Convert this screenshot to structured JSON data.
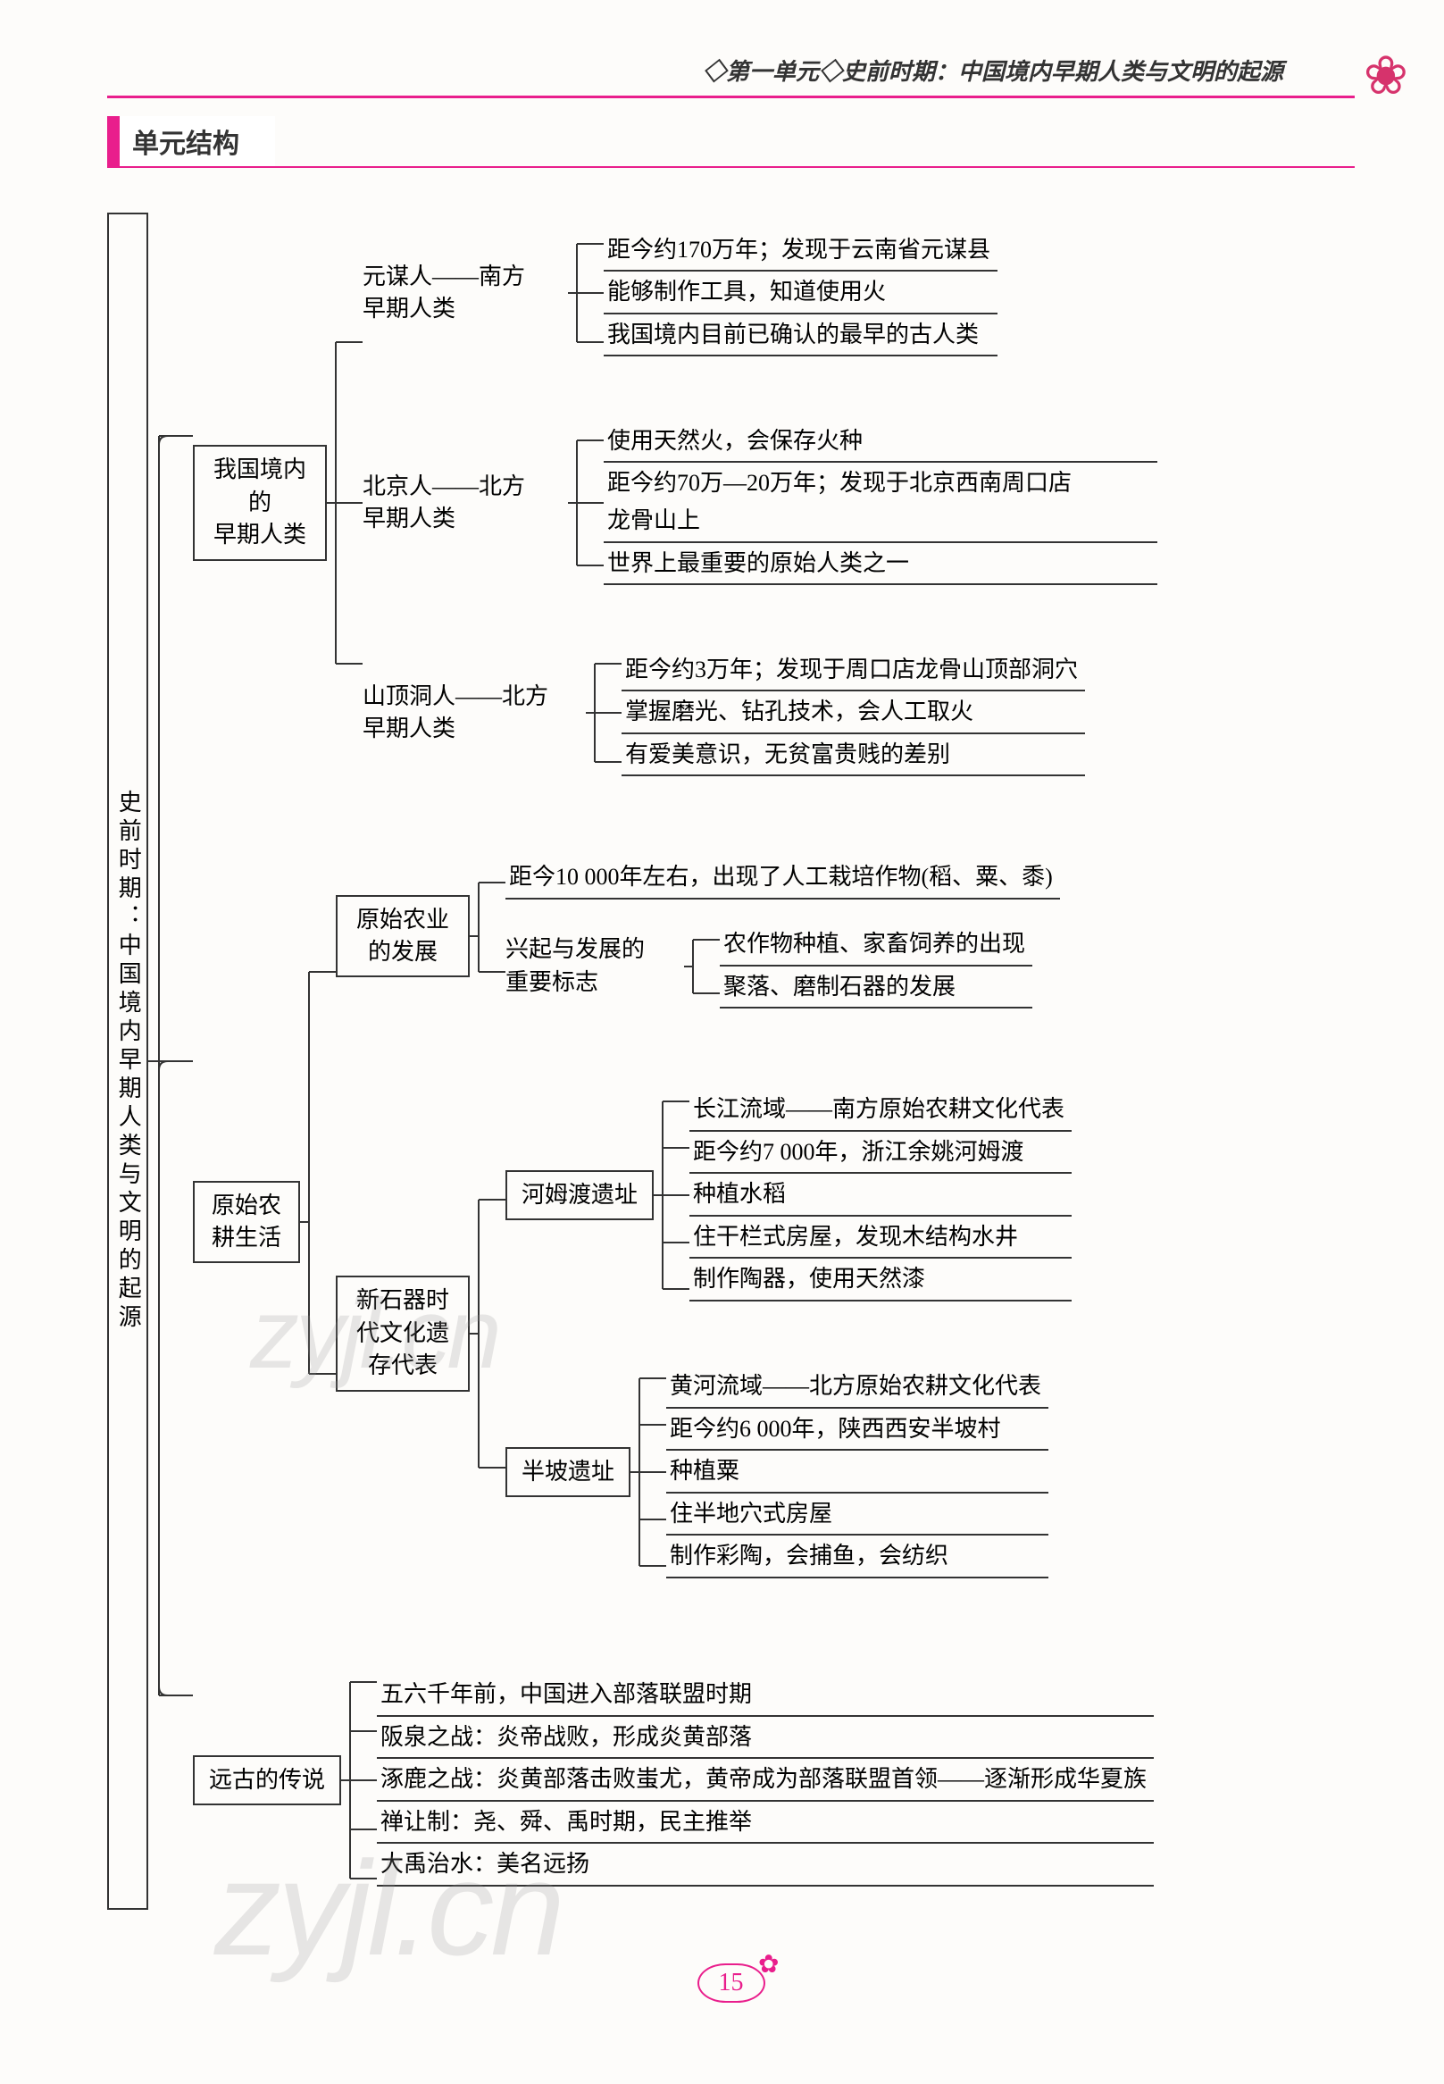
{
  "colors": {
    "accent": "#e91e8c",
    "text": "#333333",
    "line": "#333333",
    "background": "#fdfcfa",
    "watermark": "rgba(150,150,150,0.22)"
  },
  "typography": {
    "body_fontsize_pt": 20,
    "title_fontsize_pt": 23,
    "header_fontsize_pt": 20,
    "font_family": "SimSun / 宋体 serif"
  },
  "header": {
    "breadcrumb": "◇第一单元◇史前时期：中国境内早期人类与文明的起源"
  },
  "section": {
    "title": "单元结构"
  },
  "root": {
    "label": "史前时期：中国境内早期人类与文明的起源"
  },
  "branches": [
    {
      "label": "我国境内的\\n早期人类",
      "children": [
        {
          "label": "元谋人——南方\\n早期人类",
          "leaves": [
            "距今约170万年；发现于云南省元谋县",
            "能够制作工具，知道使用火",
            "我国境内目前已确认的最早的古人类"
          ]
        },
        {
          "label": "北京人——北方\\n早期人类",
          "leaves": [
            "使用天然火，会保存火种",
            "距今约70万—20万年；发现于北京西南周口店\\n龙骨山上",
            "世界上最重要的原始人类之一"
          ]
        },
        {
          "label": "山顶洞人——北方\\n早期人类",
          "leaves": [
            "距今约3万年；发现于周口店龙骨山顶部洞穴",
            "掌握磨光、钻孔技术，会人工取火",
            "有爱美意识，无贫富贵贱的差别"
          ]
        }
      ]
    },
    {
      "label": "原始农\\n耕生活",
      "children": [
        {
          "label": "原始农业\\n的发展",
          "mixed": true,
          "top_leaf": "距今10 000年左右，出现了人工栽培作物(稻、粟、黍)",
          "sub_label": "兴起与发展的\\n重要标志",
          "sub_leaves": [
            "农作物种植、家畜饲养的出现",
            "聚落、磨制石器的发展"
          ]
        },
        {
          "label": "新石器时\\n代文化遗\\n存代表",
          "children": [
            {
              "label": "河姆渡遗址",
              "leaves": [
                "长江流域——南方原始农耕文化代表",
                "距今约7 000年，浙江余姚河姆渡",
                "种植水稻",
                "住干栏式房屋，发现木结构水井",
                "制作陶器，使用天然漆"
              ]
            },
            {
              "label": "半坡遗址",
              "leaves": [
                "黄河流域——北方原始农耕文化代表",
                "距今约6 000年，陕西西安半坡村",
                "种植粟",
                "住半地穴式房屋",
                "制作彩陶，会捕鱼，会纺织"
              ]
            }
          ]
        }
      ]
    },
    {
      "label": "远古的传说",
      "leaves": [
        "五六千年前，中国进入部落联盟时期",
        "阪泉之战：炎帝战败，形成炎黄部落",
        "涿鹿之战：炎黄部落击败蚩尤，黄帝成为部落联盟首领——逐渐形成华夏族",
        "禅让制：尧、舜、禹时期，民主推举",
        "大禹治水：美名远扬"
      ]
    }
  ],
  "page_number": "15",
  "watermark_text": "zyjl.cn"
}
